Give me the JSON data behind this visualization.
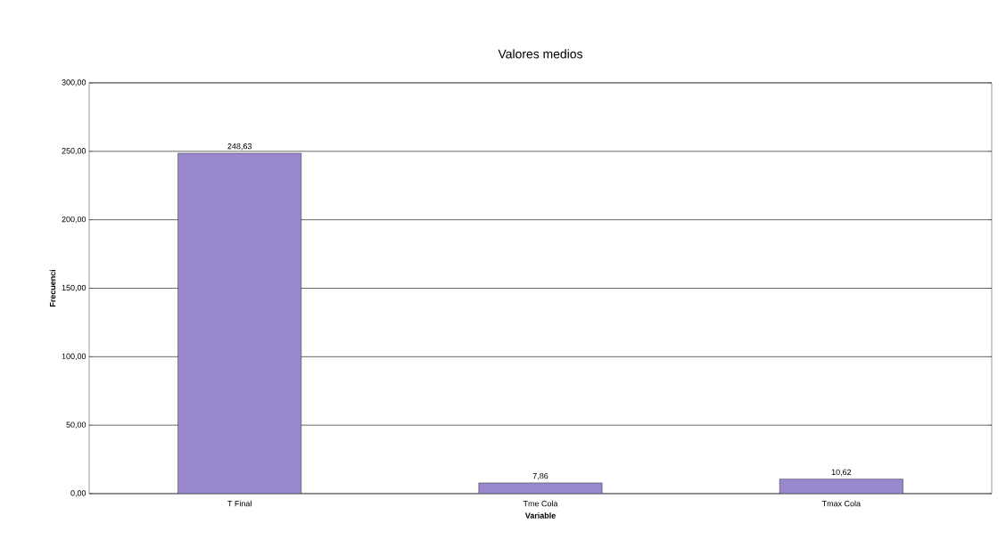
{
  "chart_data": {
    "type": "bar",
    "title": "Valores medios",
    "xlabel": "Variable",
    "ylabel": "Frecuenci",
    "categories": [
      "T Final",
      "Tme Cola",
      "Tmax Cola"
    ],
    "values": [
      248.63,
      7.86,
      10.62
    ],
    "value_labels": [
      "248,63",
      "7,86",
      "10,62"
    ],
    "color": "#9a88cc",
    "ylim": [
      0,
      300
    ],
    "yticks": [
      {
        "value": 0,
        "label": "0,00"
      },
      {
        "value": 50,
        "label": "50,00"
      },
      {
        "value": 100,
        "label": "100,00"
      },
      {
        "value": 150,
        "label": "150,00"
      },
      {
        "value": 200,
        "label": "200,00"
      },
      {
        "value": 250,
        "label": "250,00"
      },
      {
        "value": 300,
        "label": "300,00"
      }
    ],
    "grid": "y"
  }
}
